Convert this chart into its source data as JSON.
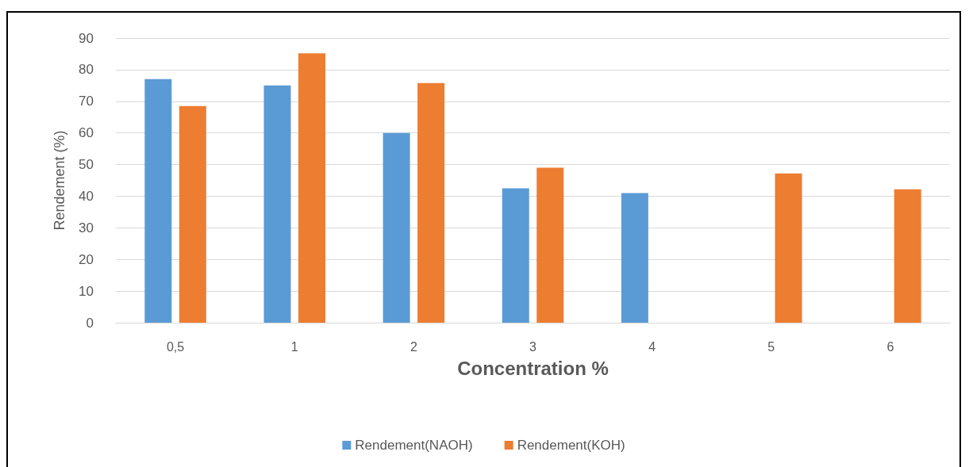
{
  "chart_data": {
    "type": "bar",
    "xlabel": "Concentration %",
    "ylabel": "Rendement (%)",
    "categories": [
      "0,5",
      "1",
      "2",
      "3",
      "4",
      "5",
      "6"
    ],
    "series": [
      {
        "name": "Rendement(NAOH)",
        "color": "#5b9bd5",
        "values": [
          77,
          75,
          60,
          42.5,
          41,
          null,
          null
        ]
      },
      {
        "name": "Rendement(KOH)",
        "color": "#ed7d31",
        "values": [
          68.5,
          85.2,
          75.8,
          49,
          null,
          47.2,
          42.2
        ]
      }
    ],
    "ylim": [
      0,
      90
    ],
    "yticks": [
      0,
      10,
      20,
      30,
      40,
      50,
      60,
      70,
      80,
      90
    ],
    "grid": "y",
    "legend": "bottom"
  }
}
